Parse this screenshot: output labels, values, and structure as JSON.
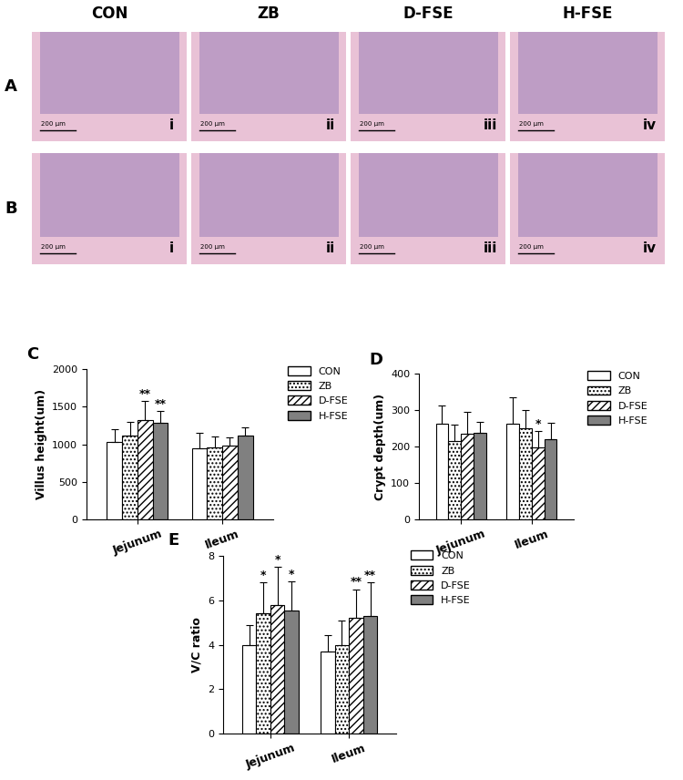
{
  "images": {
    "columns": [
      "CON",
      "ZB",
      "D-FSE",
      "H-FSE"
    ],
    "rows": [
      "A",
      "B"
    ],
    "panel_labels": [
      "i",
      "ii",
      "iii",
      "iv"
    ],
    "scale_bar": "200 μm"
  },
  "chart_data": [
    {
      "type": "bar",
      "title": "C",
      "y_label": "Villus height(um)",
      "categories": [
        "Jejunum",
        "Ileum"
      ],
      "ylim": [
        0,
        2000
      ],
      "yticks": [
        0,
        500,
        1000,
        1500,
        2000
      ],
      "legend": "upper left",
      "series": [
        {
          "name": "CON",
          "color": "#ffffff",
          "values": [
            1030,
            950
          ],
          "errors": [
            170,
            200
          ],
          "marks": [
            null,
            null
          ]
        },
        {
          "name": "ZB",
          "color": "#ffffff",
          "values": [
            1120,
            960
          ],
          "errors": [
            180,
            140
          ],
          "marks": [
            null,
            null
          ]
        },
        {
          "name": "D-FSE",
          "color": "#ffffff",
          "values": [
            1320,
            980
          ],
          "errors": [
            250,
            110
          ],
          "marks": [
            "**",
            null
          ]
        },
        {
          "name": "H-FSE",
          "color": "#808080",
          "values": [
            1290,
            1110
          ],
          "errors": [
            150,
            120
          ],
          "marks": [
            "**",
            null
          ]
        }
      ]
    },
    {
      "type": "bar",
      "title": "D",
      "y_label": "Crypt depth(um)",
      "categories": [
        "Jejunum",
        "Ileum"
      ],
      "ylim": [
        0,
        400
      ],
      "yticks": [
        0,
        100,
        200,
        300,
        400
      ],
      "legend": "upper left",
      "series": [
        {
          "name": "CON",
          "color": "#ffffff",
          "values": [
            262,
            263
          ],
          "errors": [
            50,
            72
          ],
          "marks": [
            null,
            null
          ]
        },
        {
          "name": "ZB",
          "color": "#ffffff",
          "values": [
            215,
            250
          ],
          "errors": [
            45,
            50
          ],
          "marks": [
            null,
            null
          ]
        },
        {
          "name": "D-FSE",
          "color": "#ffffff",
          "values": [
            235,
            197
          ],
          "errors": [
            60,
            45
          ],
          "marks": [
            null,
            "*"
          ]
        },
        {
          "name": "H-FSE",
          "color": "#808080",
          "values": [
            238,
            220
          ],
          "errors": [
            30,
            45
          ],
          "marks": [
            null,
            null
          ]
        }
      ]
    },
    {
      "type": "bar",
      "title": "E",
      "y_label": "V/C ratio",
      "categories": [
        "Jejunum",
        "Ileum"
      ],
      "ylim": [
        0,
        8
      ],
      "yticks": [
        0,
        2,
        4,
        6,
        8
      ],
      "legend": "upper left",
      "series": [
        {
          "name": "CON",
          "color": "#ffffff",
          "values": [
            4.0,
            3.7
          ],
          "errors": [
            0.9,
            0.75
          ],
          "marks": [
            null,
            null
          ]
        },
        {
          "name": "ZB",
          "color": "#ffffff",
          "values": [
            5.4,
            4.0
          ],
          "errors": [
            1.4,
            1.1
          ],
          "marks": [
            "*",
            null
          ]
        },
        {
          "name": "D-FSE",
          "color": "#ffffff",
          "values": [
            5.8,
            5.2
          ],
          "errors": [
            1.7,
            1.3
          ],
          "marks": [
            "*",
            "**"
          ]
        },
        {
          "name": "H-FSE",
          "color": "#808080",
          "values": [
            5.55,
            5.3
          ],
          "errors": [
            1.3,
            1.5
          ],
          "marks": [
            "*",
            "**"
          ]
        }
      ]
    }
  ]
}
